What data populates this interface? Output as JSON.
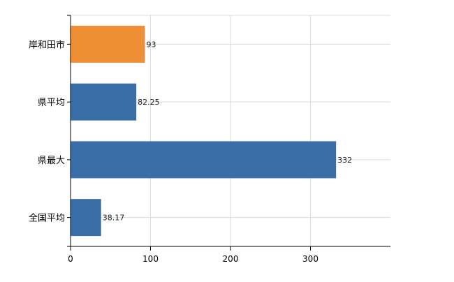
{
  "chart_data": {
    "type": "bar",
    "orientation": "horizontal",
    "categories": [
      "岸和田市",
      "県平均",
      "県最大",
      "全国平均"
    ],
    "values": [
      93,
      82.25,
      332,
      38.17
    ],
    "value_labels": [
      "93",
      "82.25",
      "332",
      "38.17"
    ],
    "bar_colors": [
      "#ef8f35",
      "#3a6ea8",
      "#3a6ea8",
      "#3a6ea8"
    ],
    "xlim": [
      0,
      400
    ],
    "x_ticks": [
      0,
      100,
      200,
      300
    ],
    "x_tick_labels": [
      "0",
      "100",
      "200",
      "300"
    ],
    "grid": true,
    "title": "",
    "xlabel": "",
    "ylabel": ""
  }
}
